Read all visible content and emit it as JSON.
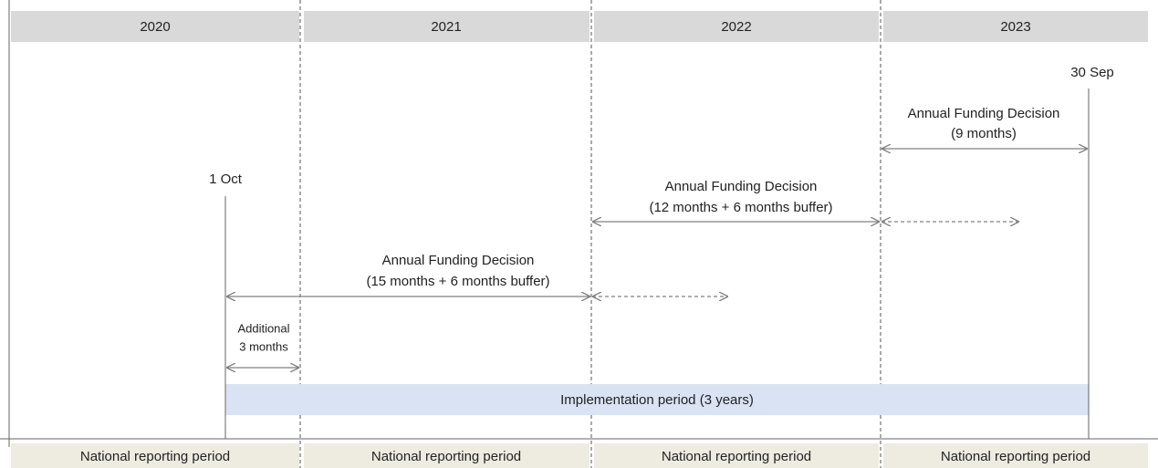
{
  "headers": {
    "years": [
      "2020",
      "2021",
      "2022",
      "2023"
    ]
  },
  "footers": {
    "labels": [
      "National reporting period",
      "National reporting period",
      "National reporting period",
      "National reporting period"
    ]
  },
  "dates": {
    "start": "1 Oct",
    "end": "30 Sep"
  },
  "decisions": [
    {
      "title": "Annual Funding Decision",
      "detail": "(9 months)"
    },
    {
      "title": "Annual Funding Decision",
      "detail": "(12 months + 6 months buffer)"
    },
    {
      "title": "Annual Funding Decision",
      "detail": "(15 months + 6 months buffer)"
    }
  ],
  "additional": {
    "line1": "Additional",
    "line2": "3 months"
  },
  "implementation": "Implementation period (3 years)"
}
